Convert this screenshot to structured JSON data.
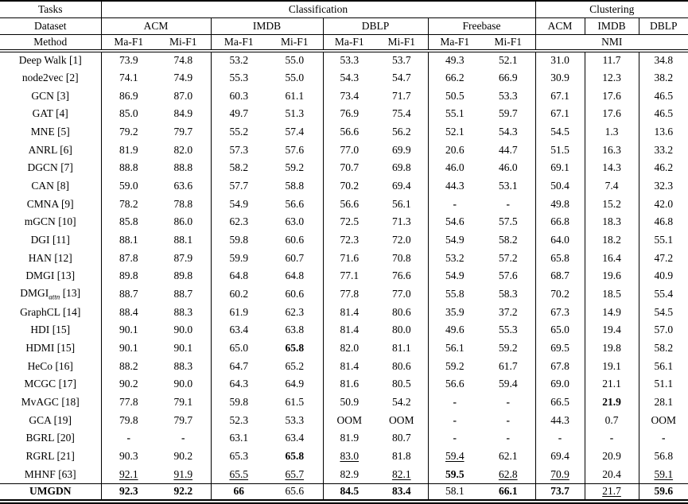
{
  "table": {
    "header": {
      "tasks": "Tasks",
      "classification": "Classification",
      "clustering": "Clustering",
      "dataset": "Dataset",
      "method": "Method",
      "class_datasets": [
        "ACM",
        "IMDB",
        "DBLP",
        "Freebase"
      ],
      "clust_datasets": [
        "ACM",
        "IMDB",
        "DBLP"
      ],
      "ma_f1": "Ma-F1",
      "mi_f1": "Mi-F1",
      "nmi": "NMI"
    },
    "columns": [
      "ACM Ma-F1",
      "ACM Mi-F1",
      "IMDB Ma-F1",
      "IMDB Mi-F1",
      "DBLP Ma-F1",
      "DBLP Mi-F1",
      "Freebase Ma-F1",
      "Freebase Mi-F1",
      "ACM NMI",
      "IMDB NMI",
      "DBLP NMI"
    ],
    "rows": [
      {
        "method": "Deep Walk",
        "sub": "",
        "ref": "[1]",
        "method_bold": false,
        "values": [
          "73.9",
          "74.8",
          "53.2",
          "55.0",
          "53.3",
          "53.7",
          "49.3",
          "52.1",
          "31.0",
          "11.7",
          "34.8"
        ],
        "styles": [
          "",
          "",
          "",
          "",
          "",
          "",
          "",
          "",
          "",
          "",
          ""
        ]
      },
      {
        "method": "node2vec",
        "sub": "",
        "ref": "[2]",
        "method_bold": false,
        "values": [
          "74.1",
          "74.9",
          "55.3",
          "55.0",
          "54.3",
          "54.7",
          "66.2",
          "66.9",
          "30.9",
          "12.3",
          "38.2"
        ],
        "styles": [
          "",
          "",
          "",
          "",
          "",
          "",
          "",
          "",
          "",
          "",
          ""
        ]
      },
      {
        "method": "GCN",
        "sub": "",
        "ref": "[3]",
        "method_bold": false,
        "values": [
          "86.9",
          "87.0",
          "60.3",
          "61.1",
          "73.4",
          "71.7",
          "50.5",
          "53.3",
          "67.1",
          "17.6",
          "46.5"
        ],
        "styles": [
          "",
          "",
          "",
          "",
          "",
          "",
          "",
          "",
          "",
          "",
          ""
        ]
      },
      {
        "method": "GAT",
        "sub": "",
        "ref": "[4]",
        "method_bold": false,
        "values": [
          "85.0",
          "84.9",
          "49.7",
          "51.3",
          "76.9",
          "75.4",
          "55.1",
          "59.7",
          "67.1",
          "17.6",
          "46.5"
        ],
        "styles": [
          "",
          "",
          "",
          "",
          "",
          "",
          "",
          "",
          "",
          "",
          ""
        ]
      },
      {
        "method": "MNE",
        "sub": "",
        "ref": "[5]",
        "method_bold": false,
        "values": [
          "79.2",
          "79.7",
          "55.2",
          "57.4",
          "56.6",
          "56.2",
          "52.1",
          "54.3",
          "54.5",
          "1.3",
          "13.6"
        ],
        "styles": [
          "",
          "",
          "",
          "",
          "",
          "",
          "",
          "",
          "",
          "",
          ""
        ]
      },
      {
        "method": "ANRL",
        "sub": "",
        "ref": "[6]",
        "method_bold": false,
        "values": [
          "81.9",
          "82.0",
          "57.3",
          "57.6",
          "77.0",
          "69.9",
          "20.6",
          "44.7",
          "51.5",
          "16.3",
          "33.2"
        ],
        "styles": [
          "",
          "",
          "",
          "",
          "",
          "",
          "",
          "",
          "",
          "",
          ""
        ]
      },
      {
        "method": "DGCN",
        "sub": "",
        "ref": "[7]",
        "method_bold": false,
        "values": [
          "88.8",
          "88.8",
          "58.2",
          "59.2",
          "70.7",
          "69.8",
          "46.0",
          "46.0",
          "69.1",
          "14.3",
          "46.2"
        ],
        "styles": [
          "",
          "",
          "",
          "",
          "",
          "",
          "",
          "",
          "",
          "",
          ""
        ]
      },
      {
        "method": "CAN",
        "sub": "",
        "ref": "[8]",
        "method_bold": false,
        "values": [
          "59.0",
          "63.6",
          "57.7",
          "58.8",
          "70.2",
          "69.4",
          "44.3",
          "53.1",
          "50.4",
          "7.4",
          "32.3"
        ],
        "styles": [
          "",
          "",
          "",
          "",
          "",
          "",
          "",
          "",
          "",
          "",
          ""
        ]
      },
      {
        "method": "CMNA",
        "sub": "",
        "ref": "[9]",
        "method_bold": false,
        "values": [
          "78.2",
          "78.8",
          "54.9",
          "56.6",
          "56.6",
          "56.1",
          "-",
          "-",
          "49.8",
          "15.2",
          "42.0"
        ],
        "styles": [
          "",
          "",
          "",
          "",
          "",
          "",
          "b",
          "b",
          "",
          "",
          ""
        ]
      },
      {
        "method": "mGCN",
        "sub": "",
        "ref": "[10]",
        "method_bold": false,
        "values": [
          "85.8",
          "86.0",
          "62.3",
          "63.0",
          "72.5",
          "71.3",
          "54.6",
          "57.5",
          "66.8",
          "18.3",
          "46.8"
        ],
        "styles": [
          "",
          "",
          "",
          "",
          "",
          "",
          "",
          "",
          "",
          "",
          ""
        ]
      },
      {
        "method": "DGI",
        "sub": "",
        "ref": "[11]",
        "method_bold": false,
        "values": [
          "88.1",
          "88.1",
          "59.8",
          "60.6",
          "72.3",
          "72.0",
          "54.9",
          "58.2",
          "64.0",
          "18.2",
          "55.1"
        ],
        "styles": [
          "",
          "",
          "",
          "",
          "",
          "",
          "",
          "",
          "",
          "",
          ""
        ]
      },
      {
        "method": "HAN",
        "sub": "",
        "ref": "[12]",
        "method_bold": false,
        "values": [
          "87.8",
          "87.9",
          "59.9",
          "60.7",
          "71.6",
          "70.8",
          "53.2",
          "57.2",
          "65.8",
          "16.4",
          "47.2"
        ],
        "styles": [
          "",
          "",
          "",
          "",
          "",
          "",
          "",
          "",
          "",
          "",
          ""
        ]
      },
      {
        "method": "DMGI",
        "sub": "",
        "ref": "[13]",
        "method_bold": false,
        "values": [
          "89.8",
          "89.8",
          "64.8",
          "64.8",
          "77.1",
          "76.6",
          "54.9",
          "57.6",
          "68.7",
          "19.6",
          "40.9"
        ],
        "styles": [
          "",
          "",
          "",
          "",
          "",
          "",
          "",
          "",
          "",
          "",
          ""
        ]
      },
      {
        "method": "DMGI",
        "sub": "attn",
        "ref": "[13]",
        "method_bold": false,
        "values": [
          "88.7",
          "88.7",
          "60.2",
          "60.6",
          "77.8",
          "77.0",
          "55.8",
          "58.3",
          "70.2",
          "18.5",
          "55.4"
        ],
        "styles": [
          "",
          "",
          "",
          "",
          "",
          "",
          "",
          "",
          "",
          "",
          ""
        ]
      },
      {
        "method": "GraphCL",
        "sub": "",
        "ref": "[14]",
        "method_bold": false,
        "values": [
          "88.4",
          "88.3",
          "61.9",
          "62.3",
          "81.4",
          "80.6",
          "35.9",
          "37.2",
          "67.3",
          "14.9",
          "54.5"
        ],
        "styles": [
          "",
          "",
          "",
          "",
          "",
          "",
          "",
          "",
          "",
          "",
          ""
        ]
      },
      {
        "method": "HDI",
        "sub": "",
        "ref": "[15]",
        "method_bold": false,
        "values": [
          "90.1",
          "90.0",
          "63.4",
          "63.8",
          "81.4",
          "80.0",
          "49.6",
          "55.3",
          "65.0",
          "19.4",
          "57.0"
        ],
        "styles": [
          "",
          "",
          "",
          "",
          "",
          "",
          "",
          "",
          "",
          "",
          ""
        ]
      },
      {
        "method": "HDMI",
        "sub": "",
        "ref": "[15]",
        "method_bold": false,
        "values": [
          "90.1",
          "90.1",
          "65.0",
          "65.8",
          "82.0",
          "81.1",
          "56.1",
          "59.2",
          "69.5",
          "19.8",
          "58.2"
        ],
        "styles": [
          "",
          "",
          "",
          "b",
          "",
          "",
          "",
          "",
          "",
          "",
          ""
        ]
      },
      {
        "method": "HeCo",
        "sub": "",
        "ref": "[16]",
        "method_bold": false,
        "values": [
          "88.2",
          "88.3",
          "64.7",
          "65.2",
          "81.4",
          "80.6",
          "59.2",
          "61.7",
          "67.8",
          "19.1",
          "56.1"
        ],
        "styles": [
          "",
          "",
          "",
          "",
          "",
          "",
          "",
          "",
          "",
          "",
          ""
        ]
      },
      {
        "method": "MCGC",
        "sub": "",
        "ref": "[17]",
        "method_bold": false,
        "values": [
          "90.2",
          "90.0",
          "64.3",
          "64.9",
          "81.6",
          "80.5",
          "56.6",
          "59.4",
          "69.0",
          "21.1",
          "51.1"
        ],
        "styles": [
          "",
          "",
          "",
          "",
          "",
          "",
          "",
          "",
          "",
          "",
          ""
        ]
      },
      {
        "method": "MvAGC",
        "sub": "",
        "ref": "[18]",
        "method_bold": false,
        "values": [
          "77.8",
          "79.1",
          "59.8",
          "61.5",
          "50.9",
          "54.2",
          "-",
          "-",
          "66.5",
          "21.9",
          "28.1"
        ],
        "styles": [
          "",
          "",
          "",
          "",
          "",
          "",
          "b",
          "b",
          "",
          "b",
          ""
        ]
      },
      {
        "method": "GCA",
        "sub": "",
        "ref": "[19]",
        "method_bold": false,
        "values": [
          "79.8",
          "79.7",
          "52.3",
          "53.3",
          "OOM",
          "OOM",
          "-",
          "-",
          "44.3",
          "0.7",
          "OOM"
        ],
        "styles": [
          "",
          "",
          "",
          "",
          "",
          "",
          "b",
          "b",
          "",
          "",
          ""
        ]
      },
      {
        "method": "BGRL",
        "sub": "",
        "ref": "[20]",
        "method_bold": false,
        "values": [
          "-",
          "-",
          "63.1",
          "63.4",
          "81.9",
          "80.7",
          "-",
          "-",
          "-",
          "-",
          "-"
        ],
        "styles": [
          "b",
          "b",
          "",
          "",
          "",
          "",
          "b",
          "b",
          "b",
          "b",
          "b"
        ]
      },
      {
        "method": "RGRL",
        "sub": "",
        "ref": "[21]",
        "method_bold": false,
        "values": [
          "90.3",
          "90.2",
          "65.3",
          "65.8",
          "83.0",
          "81.8",
          "59.4",
          "62.1",
          "69.4",
          "20.9",
          "56.8"
        ],
        "styles": [
          "",
          "",
          "",
          "b",
          "u",
          "",
          "u",
          "",
          "",
          "",
          ""
        ]
      },
      {
        "method": "MHNF",
        "sub": "",
        "ref": "[63]",
        "method_bold": false,
        "values": [
          "92.1",
          "91.9",
          "65.5",
          "65.7",
          "82.9",
          "82.1",
          "59.5",
          "62.8",
          "70.9",
          "20.4",
          "59.1"
        ],
        "styles": [
          "u",
          "u",
          "u",
          "u",
          "",
          "u",
          "b",
          "u",
          "u",
          "",
          "u"
        ]
      },
      {
        "method": "UMGDN",
        "sub": "",
        "ref": "",
        "method_bold": true,
        "values": [
          "92.3",
          "92.2",
          "66",
          "65.6",
          "84.5",
          "83.4",
          "58.1",
          "66.1",
          "73.7",
          "21.7",
          "59.6"
        ],
        "styles": [
          "b",
          "b",
          "b",
          "",
          "b",
          "b",
          "",
          "b",
          "b",
          "u",
          "b"
        ]
      }
    ]
  }
}
